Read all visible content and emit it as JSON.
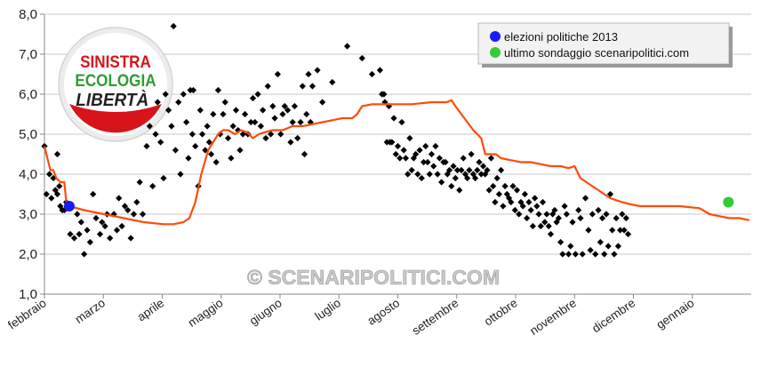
{
  "chart_data": {
    "type": "scatter",
    "ylim": [
      1.0,
      8.0
    ],
    "y_ticks": [
      "1,0",
      "2,0",
      "3,0",
      "4,0",
      "5,0",
      "6,0",
      "7,0",
      "8,0"
    ],
    "x_ticks": [
      "febbraio",
      "marzo",
      "aprile",
      "maggio",
      "giugno",
      "luglio",
      "agosto",
      "settembre",
      "ottobre",
      "novembre",
      "dicembre",
      "gennaio"
    ],
    "grid": true,
    "legend_position": "top-right",
    "legend": [
      "elezioni politiche 2013",
      "ultimo sondaggio scenaripolitici.com"
    ],
    "watermark": "© SCENARIPOLITICI.COM",
    "logo": {
      "line1": "SINISTRA",
      "line2": "ECOLOGIA",
      "line3": "LIBERTÀ"
    },
    "colors": {
      "polls": "#000000",
      "trend": "#ff4a0a",
      "election": "#1a1aff",
      "latest": "#33cc33",
      "logo_red": "#d7141a",
      "logo_green": "#2e9c35"
    },
    "polls_x": [
      0,
      2,
      5,
      7,
      9,
      11,
      13,
      13,
      15,
      16,
      18,
      20,
      22,
      26,
      30,
      33,
      35,
      37,
      40,
      43,
      46,
      49,
      52,
      56,
      58,
      61,
      63,
      66,
      70,
      73,
      75,
      78,
      81,
      84,
      87,
      90,
      93,
      96,
      99,
      103,
      106,
      109,
      112,
      114,
      117,
      120,
      122,
      125,
      128,
      130,
      132,
      135,
      137,
      140,
      143,
      145,
      147,
      149,
      150,
      152,
      155,
      157,
      159,
      162,
      164,
      166,
      168,
      170,
      173,
      175,
      177,
      180,
      182,
      185,
      188,
      190,
      193,
      195,
      197,
      200,
      202,
      205,
      208,
      210,
      212,
      215,
      218,
      220,
      223,
      225,
      228,
      230,
      232,
      235,
      238,
      240,
      242,
      245,
      248,
      250,
      252,
      255,
      258,
      260,
      262,
      264,
      266,
      268,
      270,
      275,
      280,
      290,
      305,
      320,
      330,
      338,
      340,
      342,
      343,
      345,
      347,
      348,
      350,
      352,
      354,
      356,
      358,
      360,
      362,
      364,
      366,
      368,
      370,
      372,
      374,
      376,
      378,
      380,
      382,
      384,
      386,
      388,
      390,
      392,
      394,
      396,
      398,
      400,
      402,
      404,
      406,
      408,
      410,
      412,
      414,
      416,
      418,
      420,
      422,
      424,
      426,
      428,
      430,
      432,
      434,
      436,
      438,
      440,
      442,
      444,
      446,
      448,
      450,
      452,
      454,
      456,
      458,
      460,
      462,
      464,
      466,
      468,
      470,
      472,
      474,
      476,
      478,
      480,
      482,
      484,
      486,
      488,
      490,
      492,
      494,
      496,
      498,
      500,
      502,
      504,
      506,
      508,
      510,
      512,
      514,
      516,
      518,
      520,
      522,
      524,
      526,
      528,
      530,
      532,
      535,
      538,
      540,
      542,
      545,
      548,
      550,
      552,
      555,
      558,
      560,
      562,
      564,
      566,
      568,
      570,
      572,
      574,
      576,
      578,
      580,
      582,
      584,
      586,
      588,
      590,
      592,
      594,
      596,
      598,
      600,
      602,
      604
    ],
    "polls_y": [
      4.7,
      3.5,
      4.0,
      3.4,
      3.9,
      3.6,
      4.5,
      3.5,
      3.7,
      3.2,
      3.1,
      3.1,
      3.3,
      2.5,
      2.4,
      3.0,
      2.5,
      2.8,
      2.0,
      2.6,
      2.3,
      3.5,
      2.9,
      2.5,
      2.8,
      2.7,
      3.0,
      2.4,
      3.0,
      2.6,
      3.4,
      2.7,
      3.2,
      3.1,
      2.4,
      3.0,
      3.3,
      3.8,
      3.0,
      4.7,
      5.2,
      3.7,
      5.0,
      5.8,
      4.8,
      3.9,
      6.0,
      5.6,
      5.2,
      7.7,
      4.6,
      5.8,
      4.0,
      6.0,
      5.3,
      4.4,
      6.1,
      5.0,
      6.1,
      4.7,
      3.7,
      5.6,
      5.0,
      4.6,
      5.2,
      4.8,
      4.5,
      5.5,
      4.3,
      6.1,
      5.0,
      5.5,
      5.8,
      4.9,
      4.4,
      5.2,
      5.6,
      5.1,
      4.6,
      5.0,
      5.5,
      5.0,
      5.3,
      5.9,
      5.3,
      6.0,
      5.2,
      5.6,
      4.9,
      6.2,
      5.0,
      5.7,
      5.4,
      6.5,
      5.0,
      5.5,
      5.7,
      5.6,
      4.8,
      5.3,
      5.7,
      4.9,
      5.3,
      6.2,
      4.5,
      5.5,
      6.5,
      5.3,
      6.2,
      6.6,
      5.8,
      6.3,
      7.2,
      6.9,
      6.5,
      6.6,
      6.0,
      6.0,
      5.8,
      4.8,
      5.7,
      4.8,
      4.8,
      5.4,
      4.5,
      4.7,
      4.4,
      5.3,
      4.6,
      4.4,
      4.0,
      4.9,
      4.1,
      4.4,
      4.5,
      4.0,
      4.6,
      3.9,
      4.3,
      4.7,
      4.3,
      4.0,
      4.5,
      4.2,
      4.7,
      4.0,
      4.4,
      3.8,
      4.3,
      4.3,
      4.0,
      4.1,
      3.7,
      4.2,
      3.9,
      4.1,
      3.6,
      4.1,
      4.4,
      4.0,
      3.9,
      4.1,
      4.5,
      4.0,
      3.9,
      4.1,
      4.3,
      4.0,
      4.2,
      4.0,
      4.1,
      3.6,
      4.4,
      3.7,
      3.3,
      3.9,
      3.5,
      4.1,
      3.2,
      3.7,
      3.5,
      3.4,
      3.3,
      3.7,
      3.1,
      3.6,
      3.0,
      3.3,
      3.2,
      3.5,
      2.9,
      3.3,
      3.1,
      2.7,
      3.4,
      3.2,
      3.0,
      2.7,
      3.3,
      2.8,
      3.0,
      2.7,
      2.5,
      3.0,
      3.1,
      2.8,
      2.9,
      2.3,
      2.0,
      3.2,
      3.0,
      2.0,
      2.2,
      2.8,
      2.0,
      3.1,
      2.9,
      2.0,
      3.4,
      2.6,
      2.1,
      3.0,
      2.0,
      3.1,
      2.3,
      2.9,
      2.0,
      3.0,
      2.2,
      3.5,
      2.6,
      2.0,
      2.9,
      2.2,
      2.6,
      3.0,
      2.6,
      2.9,
      2.5
    ],
    "trend": [
      [
        0,
        4.7
      ],
      [
        3,
        4.4
      ],
      [
        6,
        4.1
      ],
      [
        9,
        4.1
      ],
      [
        12,
        3.9
      ],
      [
        16,
        3.8
      ],
      [
        20,
        3.8
      ],
      [
        22,
        3.3
      ],
      [
        25,
        3.2
      ],
      [
        40,
        3.1
      ],
      [
        60,
        3.0
      ],
      [
        80,
        2.9
      ],
      [
        100,
        2.8
      ],
      [
        120,
        2.75
      ],
      [
        130,
        2.75
      ],
      [
        140,
        2.8
      ],
      [
        146,
        2.9
      ],
      [
        152,
        3.3
      ],
      [
        158,
        4.0
      ],
      [
        165,
        4.6
      ],
      [
        170,
        4.8
      ],
      [
        175,
        5.0
      ],
      [
        180,
        5.1
      ],
      [
        185,
        5.1
      ],
      [
        192,
        5.0
      ],
      [
        198,
        5.1
      ],
      [
        204,
        5.05
      ],
      [
        210,
        4.9
      ],
      [
        216,
        5.0
      ],
      [
        222,
        5.05
      ],
      [
        230,
        5.1
      ],
      [
        240,
        5.1
      ],
      [
        250,
        5.2
      ],
      [
        260,
        5.2
      ],
      [
        270,
        5.25
      ],
      [
        280,
        5.3
      ],
      [
        290,
        5.35
      ],
      [
        300,
        5.4
      ],
      [
        310,
        5.4
      ],
      [
        315,
        5.5
      ],
      [
        320,
        5.7
      ],
      [
        330,
        5.75
      ],
      [
        350,
        5.75
      ],
      [
        370,
        5.75
      ],
      [
        390,
        5.8
      ],
      [
        405,
        5.8
      ],
      [
        410,
        5.85
      ],
      [
        414,
        5.7
      ],
      [
        420,
        5.5
      ],
      [
        426,
        5.3
      ],
      [
        432,
        5.1
      ],
      [
        436,
        5.0
      ],
      [
        440,
        4.9
      ],
      [
        444,
        4.5
      ],
      [
        448,
        4.5
      ],
      [
        455,
        4.5
      ],
      [
        460,
        4.4
      ],
      [
        470,
        4.35
      ],
      [
        480,
        4.3
      ],
      [
        490,
        4.3
      ],
      [
        500,
        4.25
      ],
      [
        510,
        4.2
      ],
      [
        520,
        4.2
      ],
      [
        528,
        4.15
      ],
      [
        534,
        4.2
      ],
      [
        540,
        3.9
      ],
      [
        546,
        3.8
      ],
      [
        552,
        3.7
      ],
      [
        558,
        3.6
      ],
      [
        564,
        3.5
      ],
      [
        570,
        3.4
      ],
      [
        576,
        3.35
      ],
      [
        582,
        3.3
      ],
      [
        590,
        3.25
      ],
      [
        600,
        3.2
      ],
      [
        620,
        3.2
      ],
      [
        640,
        3.2
      ],
      [
        660,
        3.15
      ],
      [
        670,
        3.0
      ],
      [
        680,
        2.95
      ],
      [
        690,
        2.9
      ],
      [
        700,
        2.9
      ],
      [
        710,
        2.85
      ]
    ],
    "election_point": [
      25,
      3.2
    ],
    "latest_point": [
      689,
      3.3
    ]
  }
}
